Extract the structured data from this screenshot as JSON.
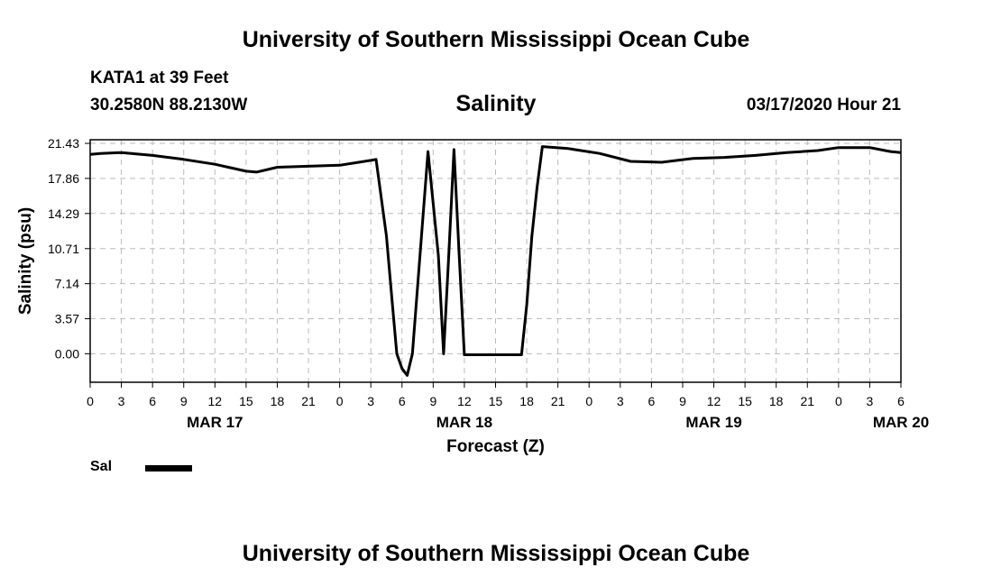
{
  "header": {
    "title": "University of Southern Mississippi Ocean Cube",
    "station": "KATA1 at 39 Feet",
    "location": "30.2580N 88.2130W",
    "chart_title": "Salinity",
    "run_time": "03/17/2020 Hour 21"
  },
  "footer": {
    "title": "University of Southern Mississippi Ocean Cube"
  },
  "legend": {
    "label": "Sal",
    "color": "#000000"
  },
  "chart_data": {
    "type": "line",
    "title": "Salinity",
    "xlabel": "Forecast (Z)",
    "ylabel": "Salinity (psu)",
    "x_unit": "hours from 00Z MAR 17",
    "xlim": [
      0,
      78
    ],
    "ylim": [
      -2.9,
      21.8
    ],
    "y_ticks": [
      "21.43",
      "17.86",
      "14.29",
      "10.71",
      "7.14",
      "3.57",
      "0.00"
    ],
    "x_tick_labels": [
      "0",
      "3",
      "6",
      "9",
      "12",
      "15",
      "18",
      "21",
      "0",
      "3",
      "6",
      "9",
      "12",
      "15",
      "18",
      "21",
      "0",
      "3",
      "6",
      "9",
      "12",
      "15",
      "18",
      "21",
      "0",
      "3",
      "6"
    ],
    "date_labels": [
      {
        "label": "MAR 17",
        "hour": 12
      },
      {
        "label": "MAR 18",
        "hour": 36
      },
      {
        "label": "MAR 19",
        "hour": 60
      },
      {
        "label": "MAR 20",
        "hour": 78
      }
    ],
    "grid": true,
    "legend_position": "bottom-left",
    "series": [
      {
        "name": "Sal",
        "color": "#000000",
        "x": [
          0,
          1,
          3,
          6,
          9,
          12,
          15,
          16,
          18,
          21,
          24,
          27,
          27.5,
          28.5,
          29,
          29.5,
          30,
          30.5,
          31,
          32.5,
          33.5,
          34,
          34.5,
          35,
          35.5,
          36,
          37.5,
          40,
          41.5,
          42,
          42.5,
          43,
          43.5,
          46,
          49,
          52,
          55,
          58,
          61,
          64,
          67,
          70,
          72,
          75,
          77,
          78
        ],
        "y": [
          20.3,
          20.4,
          20.5,
          20.2,
          19.8,
          19.3,
          18.6,
          18.5,
          19.0,
          19.1,
          19.2,
          19.7,
          19.8,
          12.0,
          6.0,
          0.0,
          -1.5,
          -2.2,
          0.0,
          20.6,
          10.0,
          0.0,
          10.0,
          20.8,
          10.0,
          -0.1,
          -0.1,
          -0.1,
          -0.1,
          5.0,
          12.0,
          17.0,
          21.1,
          20.9,
          20.4,
          19.6,
          19.5,
          19.9,
          20.0,
          20.2,
          20.5,
          20.7,
          21.0,
          21.0,
          20.6,
          20.5
        ]
      }
    ]
  }
}
